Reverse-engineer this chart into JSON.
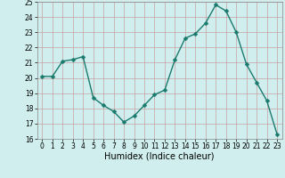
{
  "x": [
    0,
    1,
    2,
    3,
    4,
    5,
    6,
    7,
    8,
    9,
    10,
    11,
    12,
    13,
    14,
    15,
    16,
    17,
    18,
    19,
    20,
    21,
    22,
    23
  ],
  "y": [
    20.1,
    20.1,
    21.1,
    21.2,
    21.4,
    18.7,
    18.2,
    17.8,
    17.1,
    17.5,
    18.2,
    18.9,
    19.2,
    21.2,
    22.6,
    22.9,
    23.6,
    24.8,
    24.4,
    23.0,
    20.9,
    19.7,
    18.5,
    16.3
  ],
  "line_color": "#1a7a6e",
  "marker": "D",
  "marker_size": 2.5,
  "bg_color": "#d0eeee",
  "grid_color": "#c8a0a0",
  "xlabel": "Humidex (Indice chaleur)",
  "ylim": [
    16,
    25
  ],
  "xlim": [
    -0.5,
    23.5
  ],
  "yticks": [
    16,
    17,
    18,
    19,
    20,
    21,
    22,
    23,
    24,
    25
  ],
  "xticks": [
    0,
    1,
    2,
    3,
    4,
    5,
    6,
    7,
    8,
    9,
    10,
    11,
    12,
    13,
    14,
    15,
    16,
    17,
    18,
    19,
    20,
    21,
    22,
    23
  ],
  "tick_fontsize": 5.5,
  "xlabel_fontsize": 7.0,
  "linewidth": 1.0
}
